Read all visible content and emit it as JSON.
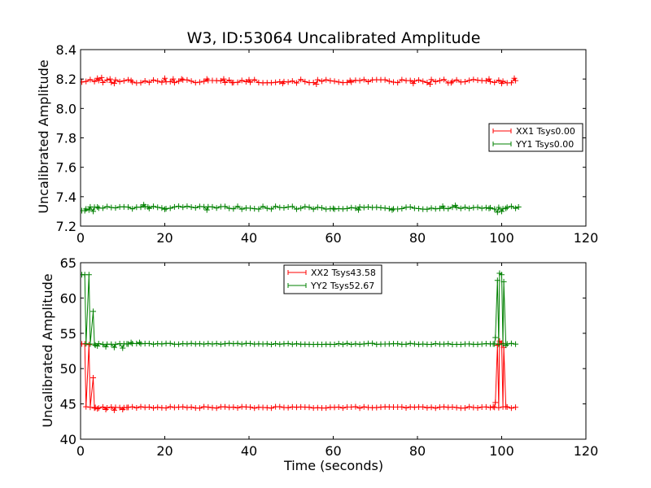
{
  "chart_data": [
    {
      "type": "line",
      "title": "W3, ID:53064 Uncalibrated Amplitude",
      "xlabel": "",
      "ylabel": "Uncalibrated Amplitude",
      "xlim": [
        0,
        120
      ],
      "ylim": [
        7.2,
        8.4
      ],
      "xticks": [
        "0",
        "20",
        "40",
        "60",
        "80",
        "100",
        "120"
      ],
      "yticks": [
        "7.2",
        "7.4",
        "7.6",
        "7.8",
        "8.0",
        "8.2",
        "8.4"
      ],
      "legend_position": "center-right",
      "series": [
        {
          "name": "XX1 Tsys0.00",
          "color": "#ff0000",
          "baseline": 8.185,
          "noise": 0.012,
          "x_start": 0.3,
          "x_end": 104,
          "x_step": 1,
          "overrides": [
            [
              4,
              8.205
            ],
            [
              5,
              8.21
            ],
            [
              7,
              8.2
            ],
            [
              8,
              8.17
            ],
            [
              12,
              8.19
            ],
            [
              20,
              8.205
            ],
            [
              22,
              8.2
            ],
            [
              24,
              8.2
            ],
            [
              30,
              8.2
            ],
            [
              34,
              8.2
            ],
            [
              36,
              8.175
            ],
            [
              40,
              8.195
            ],
            [
              48,
              8.17
            ],
            [
              56,
              8.165
            ],
            [
              64,
              8.19
            ],
            [
              79,
              8.17
            ],
            [
              83,
              8.165
            ],
            [
              88,
              8.175
            ],
            [
              97,
              8.2
            ],
            [
              100,
              8.17
            ],
            [
              103,
              8.205
            ]
          ]
        },
        {
          "name": "YY1 Tsys0.00",
          "color": "#008000",
          "baseline": 7.325,
          "noise": 0.01,
          "x_start": 0.3,
          "x_end": 104,
          "x_step": 1,
          "overrides": [
            [
              0.3,
              7.305
            ],
            [
              1,
              7.305
            ],
            [
              2,
              7.31
            ],
            [
              3,
              7.3
            ],
            [
              4,
              7.33
            ],
            [
              15,
              7.345
            ],
            [
              16,
              7.33
            ],
            [
              20,
              7.315
            ],
            [
              30,
              7.31
            ],
            [
              60,
              7.32
            ],
            [
              66,
              7.31
            ],
            [
              74,
              7.31
            ],
            [
              86,
              7.335
            ],
            [
              89,
              7.34
            ],
            [
              97,
              7.32
            ],
            [
              99,
              7.295
            ],
            [
              100,
              7.3
            ],
            [
              101,
              7.32
            ],
            [
              104,
              7.33
            ]
          ]
        }
      ]
    },
    {
      "type": "line",
      "title": "",
      "xlabel": "Time (seconds)",
      "ylabel": "Uncalibrated Amplitude",
      "xlim": [
        0,
        120
      ],
      "ylim": [
        40,
        65
      ],
      "xticks": [
        "0",
        "20",
        "40",
        "60",
        "80",
        "100",
        "120"
      ],
      "yticks": [
        "40",
        "45",
        "50",
        "55",
        "60",
        "65"
      ],
      "legend_position": "top-center",
      "series": [
        {
          "name": "XX2 Tsys43.58",
          "color": "#ff0000",
          "baseline": 44.5,
          "noise": 0.1,
          "x_start": 0.3,
          "x_end": 104,
          "x_step": 1,
          "overrides": [
            [
              0.3,
              53.5
            ],
            [
              1,
              53.5
            ],
            [
              2,
              53.4
            ],
            [
              3,
              48.7
            ],
            [
              3.5,
              44.5
            ],
            [
              4,
              44.3
            ],
            [
              6,
              44.2
            ],
            [
              8,
              44.1
            ],
            [
              10,
              44.2
            ],
            [
              11,
              44.5
            ],
            [
              98,
              44.6
            ],
            [
              98.5,
              45.2
            ],
            [
              99,
              53.3
            ],
            [
              99.5,
              53.9
            ],
            [
              100,
              53.6
            ],
            [
              100.5,
              53.0
            ],
            [
              101,
              44.6
            ]
          ]
        },
        {
          "name": "YY2 Tsys52.67",
          "color": "#008000",
          "baseline": 53.5,
          "noise": 0.08,
          "x_start": 0.3,
          "x_end": 104,
          "x_step": 1,
          "overrides": [
            [
              0.3,
              63.3
            ],
            [
              1,
              63.3
            ],
            [
              2,
              63.3
            ],
            [
              3,
              58.1
            ],
            [
              3.5,
              53.3
            ],
            [
              4,
              53.2
            ],
            [
              6,
              53.1
            ],
            [
              8,
              53.0
            ],
            [
              10,
              52.9
            ],
            [
              11,
              53.5
            ],
            [
              12,
              53.7
            ],
            [
              14,
              53.7
            ],
            [
              98,
              53.5
            ],
            [
              98.5,
              54.4
            ],
            [
              99,
              62.5
            ],
            [
              99.5,
              63.5
            ],
            [
              100,
              63.3
            ],
            [
              100.5,
              62.3
            ],
            [
              101,
              53.3
            ]
          ]
        }
      ]
    }
  ]
}
